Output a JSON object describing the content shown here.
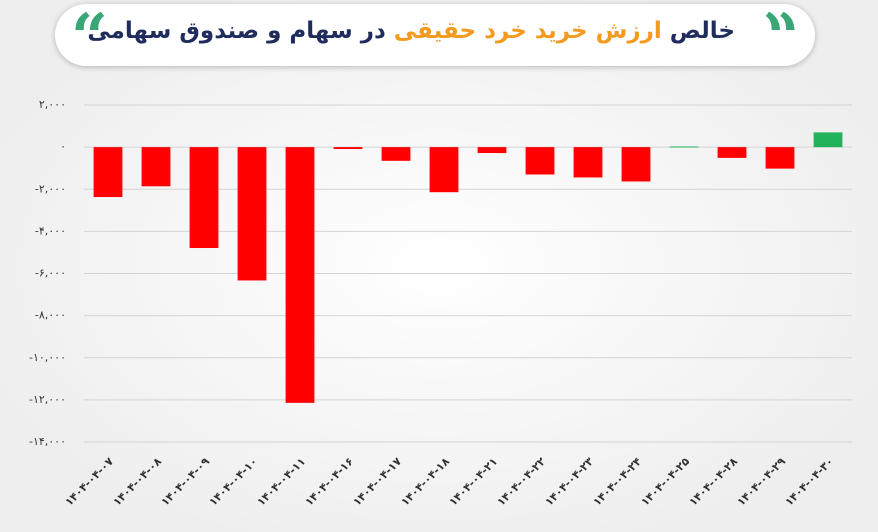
{
  "chart_data": {
    "type": "bar",
    "title_parts": [
      "خالص",
      "ارزش خرید خرد حقیقی",
      "در سهام و صندوق سهامی"
    ],
    "categories": [
      "۱۴۰۴-۰۴-۰۷",
      "۱۴۰۴-۰۴-۰۸",
      "۱۴۰۴-۰۴-۰۹",
      "۱۴۰۴-۰۴-۱۰",
      "۱۴۰۴-۰۴-۱۱",
      "۱۴۰۴-۰۴-۱۶",
      "۱۴۰۴-۰۴-۱۷",
      "۱۴۰۴-۰۴-۱۸",
      "۱۴۰۴-۰۴-۲۱",
      "۱۴۰۴-۰۴-۲۲",
      "۱۴۰۴-۰۴-۲۳",
      "۱۴۰۴-۰۴-۲۴",
      "۱۴۰۴-۰۴-۲۵",
      "۱۴۰۴-۰۴-۲۸",
      "۱۴۰۴-۰۴-۲۹",
      "۱۴۰۴-۰۴-۳۰"
    ],
    "values": [
      -2370,
      -1860,
      -4790,
      -6330,
      -12140,
      -90,
      -650,
      -2140,
      -280,
      -1300,
      -1440,
      -1630,
      30,
      -510,
      -1020,
      700
    ],
    "positive_color": "#22b25b",
    "negative_color": "#ff0000",
    "ylim": [
      -14000,
      2000
    ],
    "yticks": [
      {
        "value": 2000,
        "label": "۲,۰۰۰"
      },
      {
        "value": 0,
        "label": "۰"
      },
      {
        "value": -2000,
        "label": "-۲,۰۰۰"
      },
      {
        "value": -4000,
        "label": "-۴,۰۰۰"
      },
      {
        "value": -6000,
        "label": "-۶,۰۰۰"
      },
      {
        "value": -8000,
        "label": "-۸,۰۰۰"
      },
      {
        "value": -10000,
        "label": "-۱۰,۰۰۰"
      },
      {
        "value": -12000,
        "label": "-۱۲,۰۰۰"
      },
      {
        "value": -14000,
        "label": "-۱۴,۰۰۰"
      }
    ],
    "grid": true
  }
}
